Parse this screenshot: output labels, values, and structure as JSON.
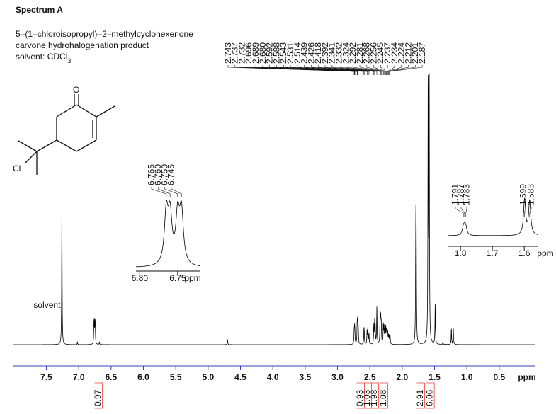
{
  "chart_data": {
    "type": "nmr",
    "title": "Spectrum A",
    "subtitle": [
      "5–(1–chloroisopropyl)–2–methylcyclohexenone",
      "carvone hydrohalogenation product"
    ],
    "solvent": {
      "text": "solvent: CDCl",
      "subscript": "3"
    },
    "structure_labels": [
      "O",
      "Cl"
    ],
    "xlabel": "ppm",
    "xlim": [
      8.02,
      -0.06
    ],
    "xticks": [
      7.5,
      {
        "value": 7,
        "label": "7.0"
      },
      6.5,
      {
        "value": 6,
        "label": "6.0"
      },
      5.5,
      {
        "value": 5,
        "label": "5.0"
      },
      4.5,
      {
        "value": 4,
        "label": "4.0"
      },
      3.5,
      {
        "value": 3,
        "label": "3.0"
      },
      2.5,
      {
        "value": 2,
        "label": "2.0"
      },
      1.5,
      {
        "value": 1,
        "label": "1.0"
      },
      0.5
    ],
    "color": "#000000",
    "axis_color": "#3b3fb6",
    "peaks": {
      "ppm": [
        7.26,
        7.02,
        6.765,
        6.76,
        6.75,
        6.745,
        6.68,
        4.7,
        2.743,
        2.737,
        2.732,
        2.696,
        2.689,
        2.68,
        2.592,
        2.588,
        2.543,
        2.531,
        2.514,
        2.439,
        2.426,
        2.418,
        2.392,
        2.341,
        2.332,
        2.324,
        2.292,
        2.281,
        2.268,
        2.256,
        2.245,
        2.237,
        2.234,
        2.224,
        2.212,
        2.201,
        2.187,
        1.791,
        1.787,
        1.783,
        1.599,
        1.583,
        1.49,
        1.37,
        1.24,
        1.21
      ],
      "intensity": [
        49,
        1,
        6,
        6,
        6,
        6,
        1,
        2,
        4,
        5,
        4,
        7,
        8,
        6,
        4,
        4,
        5,
        6,
        4,
        7,
        8,
        6,
        14,
        11,
        9,
        7,
        7,
        6,
        5,
        6,
        4,
        3,
        3,
        4,
        3,
        3,
        3,
        24,
        30,
        24,
        100,
        100,
        15,
        1,
        6,
        6
      ]
    },
    "peak_labels": [
      2.743,
      2.737,
      2.732,
      2.696,
      2.689,
      {
        "value": 2.68,
        "label": "2.680"
      },
      2.592,
      2.588,
      2.543,
      2.531,
      2.514,
      2.439,
      2.426,
      2.418,
      2.392,
      2.341,
      2.332,
      2.324,
      2.292,
      2.281,
      2.268,
      2.256,
      2.245,
      2.237,
      2.234,
      2.224,
      2.212,
      2.201,
      2.187
    ],
    "annotations": [
      {
        "text": "solvent",
        "ppm": 7.26
      }
    ],
    "integrals": {
      "values": [
        0.97,
        0.93,
        1.03,
        1.98,
        1.08,
        2.91,
        6.06
      ],
      "ppm": [
        6.7,
        2.65,
        2.54,
        2.43,
        2.29,
        1.72,
        1.57
      ],
      "color": "#e8413c"
    },
    "insets": [
      {
        "xlim": [
          6.805,
          6.72
        ],
        "xticks": [
          {
            "value": 6.8,
            "label": "6.80"
          },
          6.75
        ],
        "xlabel": "ppm",
        "peak_labels": [
          6.765,
          {
            "value": 6.76,
            "label": "6.760"
          },
          {
            "value": 6.75,
            "label": "6.750"
          },
          6.745
        ],
        "intensity": [
          60,
          55,
          55,
          60
        ]
      },
      {
        "xlim": [
          1.838,
          1.556
        ],
        "xticks": [
          1.8,
          1.7,
          1.6
        ],
        "xlabel": "ppm",
        "peak_labels": [
          1.791,
          1.787,
          1.783,
          1.599,
          1.583
        ],
        "intensity": [
          18,
          20,
          18,
          100,
          95
        ]
      }
    ]
  }
}
